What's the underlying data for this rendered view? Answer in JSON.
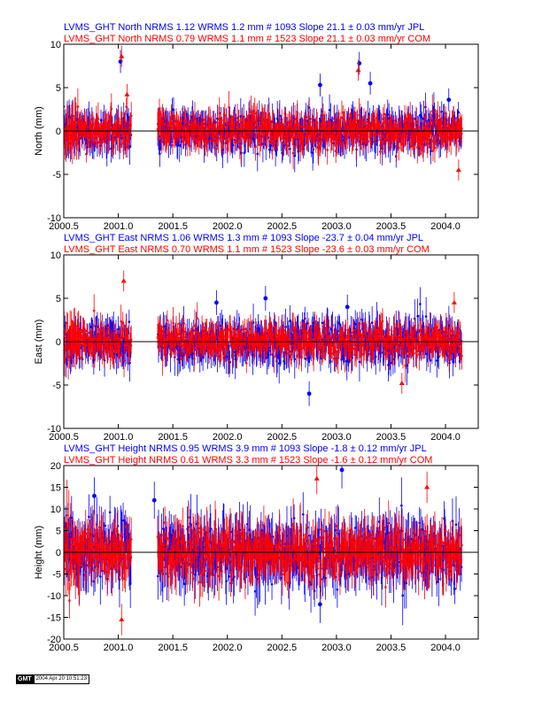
{
  "chart_data": [
    {
      "type": "scatter",
      "title_lines": [
        {
          "text": "LVMS_GHT North NRMS 1.12 WRMS  1.2 mm # 1093 Slope   21.1 ±  0.03 mm/yr JPL",
          "color": "#0000ff"
        },
        {
          "text": "LVMS_GHT North NRMS 0.79 WRMS  1.1 mm # 1523 Slope   21.1 ±  0.03 mm/yr COM",
          "color": "#ff0000"
        }
      ],
      "xlabel": "",
      "ylabel": "North (mm)",
      "xlim": [
        2000.5,
        2004.3
      ],
      "ylim": [
        -10,
        10
      ],
      "xticks": [
        "2000.5",
        "2001.0",
        "2001.5",
        "2002.0",
        "2002.5",
        "2003.0",
        "2003.5",
        "2004.0"
      ],
      "xtick_values": [
        2000.5,
        2001.0,
        2001.5,
        2002.0,
        2002.5,
        2003.0,
        2003.5,
        2004.0
      ],
      "yticks": [
        "-10",
        "-5",
        "0",
        "5",
        "10"
      ],
      "ytick_values": [
        -10,
        -5,
        0,
        5,
        10
      ],
      "series": [
        {
          "name": "JPL",
          "color": "#0000ff",
          "marker": "circle",
          "nrms": 1.12,
          "wrms": 1.2,
          "count": 1093,
          "sigma": 1.2,
          "x": [
            2001.02,
            2002.85,
            2003.21,
            2003.31,
            2004.03
          ],
          "y": [
            8.0,
            5.3,
            7.8,
            5.5,
            3.6
          ]
        },
        {
          "name": "COM",
          "color": "#ff0000",
          "marker": "triangle",
          "nrms": 0.79,
          "wrms": 1.1,
          "count": 1523,
          "sigma": 1.1,
          "x": [
            2001.03,
            2001.08,
            2003.2,
            2004.12
          ],
          "y": [
            8.6,
            4.2,
            7.0,
            -4.5
          ]
        }
      ],
      "grid": false,
      "legend": "none"
    },
    {
      "type": "scatter",
      "title_lines": [
        {
          "text": "LVMS_GHT East NRMS 1.06 WRMS  1.3 mm # 1093 Slope  -23.7 ±  0.04 mm/yr JPL",
          "color": "#0000ff"
        },
        {
          "text": "LVMS_GHT East NRMS 0.70 WRMS  1.1 mm # 1523 Slope  -23.6 ±  0.03 mm/yr COM",
          "color": "#ff0000"
        }
      ],
      "xlabel": "",
      "ylabel": "East (mm)",
      "xlim": [
        2000.5,
        2004.3
      ],
      "ylim": [
        -10,
        10
      ],
      "xticks": [
        "2000.5",
        "2001.0",
        "2001.5",
        "2002.0",
        "2002.5",
        "2003.0",
        "2003.5",
        "2004.0"
      ],
      "xtick_values": [
        2000.5,
        2001.0,
        2001.5,
        2002.0,
        2002.5,
        2003.0,
        2003.5,
        2004.0
      ],
      "yticks": [
        "-10",
        "-5",
        "0",
        "5",
        "10"
      ],
      "ytick_values": [
        -10,
        -5,
        0,
        5,
        10
      ],
      "series": [
        {
          "name": "JPL",
          "color": "#0000ff",
          "marker": "circle",
          "nrms": 1.06,
          "wrms": 1.3,
          "count": 1093,
          "sigma": 1.3,
          "x": [
            2001.9,
            2002.35,
            2002.75,
            2003.1
          ],
          "y": [
            4.5,
            5.0,
            -6.0,
            4.0
          ]
        },
        {
          "name": "COM",
          "color": "#ff0000",
          "marker": "triangle",
          "nrms": 0.7,
          "wrms": 1.1,
          "count": 1523,
          "sigma": 1.1,
          "x": [
            2001.05,
            2003.6,
            2004.08
          ],
          "y": [
            7.0,
            -4.8,
            4.5
          ]
        }
      ],
      "grid": false,
      "legend": "none"
    },
    {
      "type": "scatter",
      "title_lines": [
        {
          "text": "LVMS_GHT Height NRMS 0.95 WRMS  3.9 mm # 1093 Slope   -1.8 ±  0.12 mm/yr JPL",
          "color": "#0000ff"
        },
        {
          "text": "LVMS_GHT Height NRMS 0.61 WRMS  3.3 mm # 1523 Slope   -1.6 ±  0.12 mm/yr COM",
          "color": "#ff0000"
        }
      ],
      "xlabel": "",
      "ylabel": "Height (mm)",
      "xlim": [
        2000.5,
        2004.3
      ],
      "ylim": [
        -20,
        20
      ],
      "xticks": [
        "2000.5",
        "2001.0",
        "2001.5",
        "2002.0",
        "2002.5",
        "2003.0",
        "2003.5",
        "2004.0"
      ],
      "xtick_values": [
        2000.5,
        2001.0,
        2001.5,
        2002.0,
        2002.5,
        2003.0,
        2003.5,
        2004.0
      ],
      "yticks": [
        "-20",
        "-15",
        "-10",
        "-5",
        "0",
        "5",
        "10",
        "15",
        "20"
      ],
      "ytick_values": [
        -20,
        -15,
        -10,
        -5,
        0,
        5,
        10,
        15,
        20
      ],
      "series": [
        {
          "name": "JPL",
          "color": "#0000ff",
          "marker": "circle",
          "nrms": 0.95,
          "wrms": 3.9,
          "count": 1093,
          "sigma": 3.9,
          "x": [
            2000.78,
            2001.33,
            2002.85,
            2003.05
          ],
          "y": [
            13.0,
            12.0,
            -12.0,
            19.0
          ]
        },
        {
          "name": "COM",
          "color": "#ff0000",
          "marker": "triangle",
          "nrms": 0.61,
          "wrms": 3.3,
          "count": 1523,
          "sigma": 3.3,
          "x": [
            2001.03,
            2002.82,
            2003.83
          ],
          "y": [
            -15.5,
            17.0,
            15.0
          ]
        }
      ],
      "grid": false,
      "legend": "none"
    }
  ],
  "footer": {
    "logo": "GMT",
    "timestamp": "2004 Apr 20 10:51:23"
  }
}
